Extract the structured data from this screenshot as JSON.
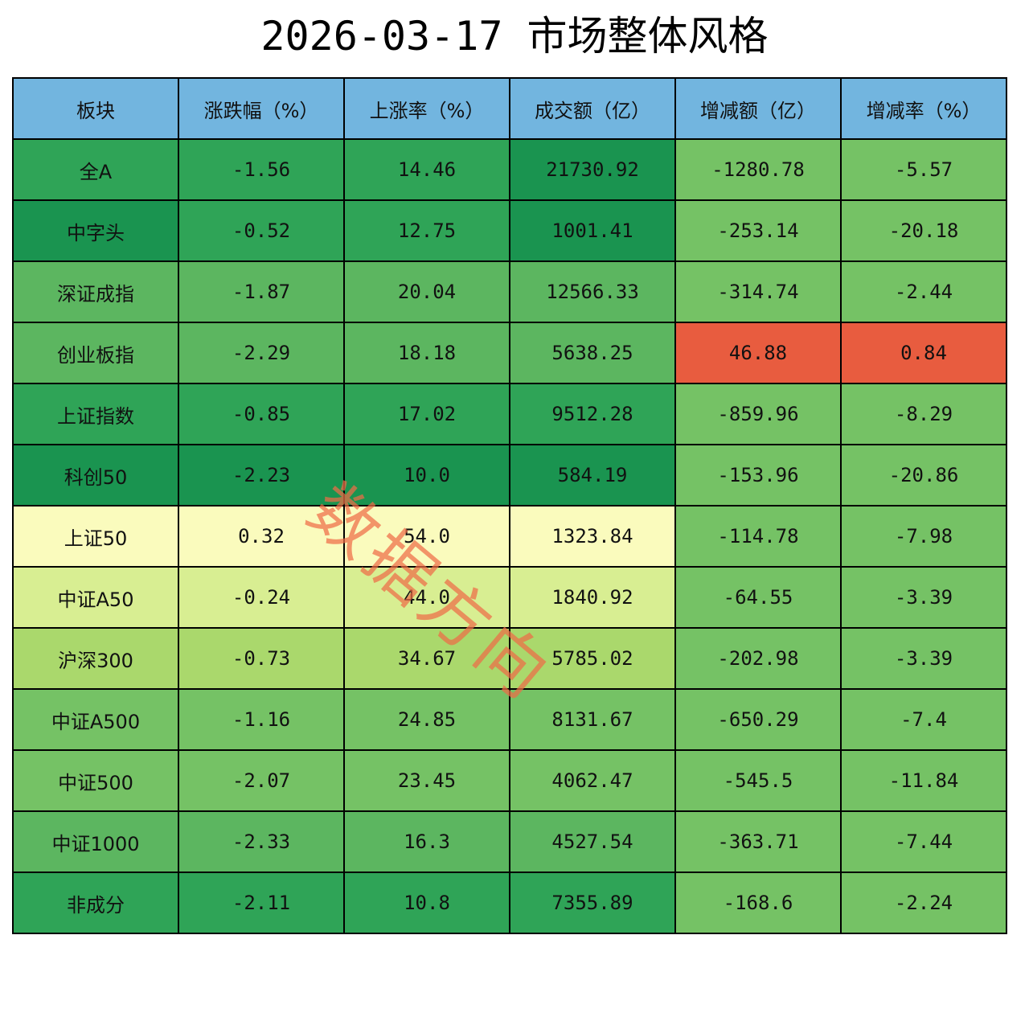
{
  "title": "2026-03-17 市场整体风格",
  "watermark": "数据方向",
  "colors": {
    "header": "#72b5df",
    "dark_green": "#1a9450",
    "mid_green": "#2fa457",
    "green": "#5cb660",
    "light_green": "#75c265",
    "yellow_green": "#aad86c",
    "pale_green": "#d8ee92",
    "pale_yellow": "#fafbbd",
    "red": "#e85c3f"
  },
  "columns": [
    "板块",
    "涨跌幅（%）",
    "上涨率（%）",
    "成交额（亿）",
    "增减额（亿）",
    "增减率（%）"
  ],
  "rows": [
    {
      "cells": [
        "全A",
        "-1.56",
        "14.46",
        "21730.92",
        "-1280.78",
        "-5.57"
      ],
      "colors": [
        "mid_green",
        "mid_green",
        "mid_green",
        "dark_green",
        "light_green",
        "light_green"
      ]
    },
    {
      "cells": [
        "中字头",
        "-0.52",
        "12.75",
        "1001.41",
        "-253.14",
        "-20.18"
      ],
      "colors": [
        "dark_green",
        "mid_green",
        "mid_green",
        "dark_green",
        "light_green",
        "light_green"
      ]
    },
    {
      "cells": [
        "深证成指",
        "-1.87",
        "20.04",
        "12566.33",
        "-314.74",
        "-2.44"
      ],
      "colors": [
        "green",
        "green",
        "green",
        "green",
        "light_green",
        "light_green"
      ]
    },
    {
      "cells": [
        "创业板指",
        "-2.29",
        "18.18",
        "5638.25",
        "46.88",
        "0.84"
      ],
      "colors": [
        "green",
        "green",
        "green",
        "green",
        "red",
        "red"
      ]
    },
    {
      "cells": [
        "上证指数",
        "-0.85",
        "17.02",
        "9512.28",
        "-859.96",
        "-8.29"
      ],
      "colors": [
        "mid_green",
        "mid_green",
        "mid_green",
        "mid_green",
        "light_green",
        "light_green"
      ]
    },
    {
      "cells": [
        "科创50",
        "-2.23",
        "10.0",
        "584.19",
        "-153.96",
        "-20.86"
      ],
      "colors": [
        "dark_green",
        "dark_green",
        "dark_green",
        "dark_green",
        "light_green",
        "light_green"
      ]
    },
    {
      "cells": [
        "上证50",
        "0.32",
        "54.0",
        "1323.84",
        "-114.78",
        "-7.98"
      ],
      "colors": [
        "pale_yellow",
        "pale_yellow",
        "pale_yellow",
        "pale_yellow",
        "light_green",
        "light_green"
      ]
    },
    {
      "cells": [
        "中证A50",
        "-0.24",
        "44.0",
        "1840.92",
        "-64.55",
        "-3.39"
      ],
      "colors": [
        "pale_green",
        "pale_green",
        "pale_green",
        "pale_green",
        "light_green",
        "light_green"
      ]
    },
    {
      "cells": [
        "沪深300",
        "-0.73",
        "34.67",
        "5785.02",
        "-202.98",
        "-3.39"
      ],
      "colors": [
        "yellow_green",
        "yellow_green",
        "yellow_green",
        "yellow_green",
        "light_green",
        "light_green"
      ]
    },
    {
      "cells": [
        "中证A500",
        "-1.16",
        "24.85",
        "8131.67",
        "-650.29",
        "-7.4"
      ],
      "colors": [
        "light_green",
        "light_green",
        "light_green",
        "light_green",
        "light_green",
        "light_green"
      ]
    },
    {
      "cells": [
        "中证500",
        "-2.07",
        "23.45",
        "4062.47",
        "-545.5",
        "-11.84"
      ],
      "colors": [
        "light_green",
        "light_green",
        "light_green",
        "light_green",
        "light_green",
        "light_green"
      ]
    },
    {
      "cells": [
        "中证1000",
        "-2.33",
        "16.3",
        "4527.54",
        "-363.71",
        "-7.44"
      ],
      "colors": [
        "green",
        "green",
        "green",
        "green",
        "light_green",
        "light_green"
      ]
    },
    {
      "cells": [
        "非成分",
        "-2.11",
        "10.8",
        "7355.89",
        "-168.6",
        "-2.24"
      ],
      "colors": [
        "mid_green",
        "mid_green",
        "mid_green",
        "mid_green",
        "light_green",
        "light_green"
      ]
    }
  ]
}
